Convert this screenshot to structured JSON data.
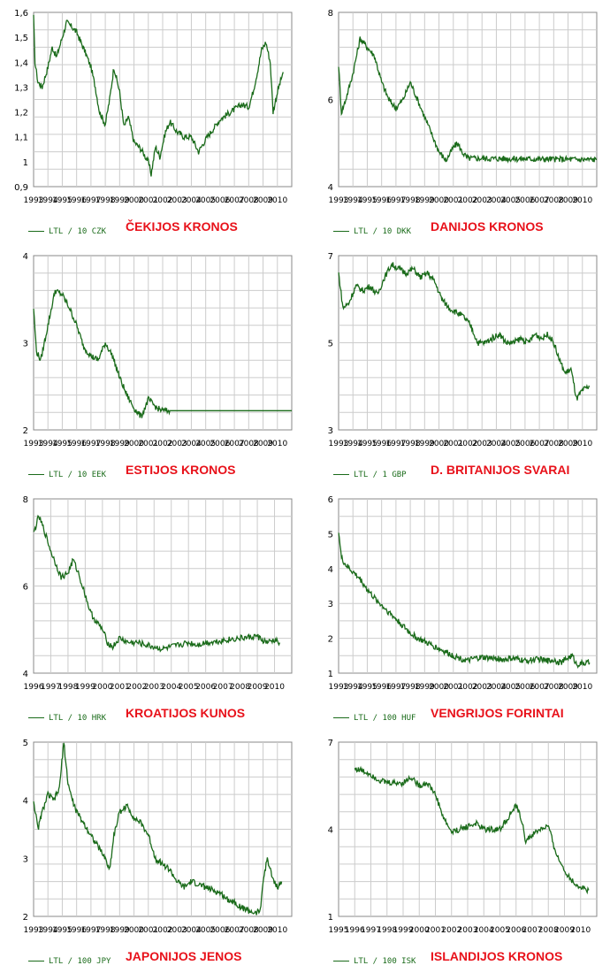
{
  "colors": {
    "line": "#1a6b1a",
    "grid": "#cccccc",
    "axis": "#888888",
    "title": "#e8111a",
    "legend": "#1a6b1a"
  },
  "chart_data": [
    {
      "type": "line",
      "title": "ČEKIJOS KRONOS",
      "legend": "LTL / 10 CZK",
      "ylim": [
        0.9,
        1.6
      ],
      "yticks": [
        "0,9",
        "1",
        "1,1",
        "1,2",
        "1,3",
        "1,4",
        "1,5",
        "1,6"
      ],
      "xlim": [
        1993,
        2011
      ],
      "xticks": [
        "1993",
        "1994",
        "1995",
        "1996",
        "1997",
        "1998",
        "1999",
        "2000",
        "2001",
        "2002",
        "2003",
        "2004",
        "2005",
        "2006",
        "2007",
        "2008",
        "2009",
        "2010"
      ],
      "x": [
        1993.0,
        1993.1,
        1993.3,
        1993.6,
        1994.0,
        1994.3,
        1994.6,
        1995.0,
        1995.3,
        1995.7,
        1996.0,
        1996.3,
        1996.6,
        1997.0,
        1997.3,
        1997.6,
        1998.0,
        1998.3,
        1998.6,
        1999.0,
        1999.3,
        1999.6,
        2000.0,
        2000.5,
        2001.0,
        2001.2,
        2001.5,
        2001.8,
        2002.2,
        2002.5,
        2003.0,
        2003.5,
        2004.0,
        2004.5,
        2005.0,
        2005.5,
        2006.0,
        2006.5,
        2007.0,
        2007.5,
        2008.0,
        2008.3,
        2008.6,
        2008.9,
        2009.2,
        2009.5,
        2009.7,
        2010.0,
        2010.4
      ],
      "y": [
        1.58,
        1.4,
        1.32,
        1.3,
        1.38,
        1.46,
        1.42,
        1.5,
        1.56,
        1.54,
        1.52,
        1.48,
        1.44,
        1.38,
        1.3,
        1.2,
        1.15,
        1.25,
        1.38,
        1.28,
        1.14,
        1.18,
        1.08,
        1.05,
        1.0,
        0.95,
        1.06,
        1.02,
        1.12,
        1.16,
        1.12,
        1.1,
        1.1,
        1.04,
        1.09,
        1.13,
        1.17,
        1.19,
        1.21,
        1.23,
        1.22,
        1.28,
        1.36,
        1.45,
        1.48,
        1.4,
        1.2,
        1.28,
        1.36
      ]
    },
    {
      "type": "line",
      "title": "DANIJOS KRONOS",
      "legend": "LTL / 10 DKK",
      "ylim": [
        4,
        8
      ],
      "yticks": [
        "4",
        "6",
        "8"
      ],
      "xlim": [
        1993,
        2011
      ],
      "xticks": [
        "1993",
        "1994",
        "1995",
        "1996",
        "1997",
        "1998",
        "1999",
        "2000",
        "2001",
        "2002",
        "2003",
        "2004",
        "2005",
        "2006",
        "2007",
        "2008",
        "2009",
        "2010"
      ],
      "x": [
        1993.0,
        1993.2,
        1993.5,
        1994.0,
        1994.5,
        1995.0,
        1995.5,
        1996.0,
        1996.5,
        1997.0,
        1997.5,
        1998.0,
        1998.5,
        1999.0,
        1999.5,
        2000.0,
        2000.5,
        2001.0,
        2001.3,
        2001.6,
        2002.0,
        2002.5,
        2011.0
      ],
      "y": [
        6.8,
        5.7,
        6.0,
        6.6,
        7.4,
        7.2,
        7.0,
        6.4,
        6.0,
        5.8,
        6.0,
        6.4,
        6.0,
        5.6,
        5.2,
        4.8,
        4.6,
        4.9,
        5.0,
        4.8,
        4.65,
        4.65,
        4.62
      ]
    },
    {
      "type": "line",
      "title": "ESTIJOS KRONOS",
      "legend": "LTL / 10 EEK",
      "ylim": [
        2,
        4
      ],
      "yticks": [
        "2",
        "3",
        "4"
      ],
      "xlim": [
        1993,
        2011
      ],
      "xticks": [
        "1993",
        "1994",
        "1995",
        "1996",
        "1997",
        "1998",
        "1999",
        "2000",
        "2001",
        "2002",
        "2003",
        "2004",
        "2005",
        "2006",
        "2007",
        "2008",
        "2009",
        "2010"
      ],
      "x": [
        1993.0,
        1993.2,
        1993.5,
        1994.0,
        1994.5,
        1995.0,
        1995.5,
        1996.0,
        1996.5,
        1997.0,
        1997.5,
        1998.0,
        1998.5,
        1999.0,
        1999.5,
        2000.0,
        2000.5,
        2001.0,
        2001.3,
        2001.6,
        2002.0,
        2002.5,
        2011.0
      ],
      "y": [
        3.4,
        2.9,
        2.8,
        3.2,
        3.6,
        3.55,
        3.4,
        3.2,
        2.95,
        2.85,
        2.8,
        3.0,
        2.85,
        2.6,
        2.4,
        2.25,
        2.15,
        2.35,
        2.3,
        2.25,
        2.22,
        2.22,
        2.22
      ]
    },
    {
      "type": "line",
      "title": "D. BRITANIJOS SVARAI",
      "legend": "LTL / 1 GBP",
      "ylim": [
        3,
        7
      ],
      "yticks": [
        "3",
        "5",
        "7"
      ],
      "xlim": [
        1993,
        2011
      ],
      "xticks": [
        "1993",
        "1994",
        "1995",
        "1996",
        "1997",
        "1998",
        "1999",
        "2000",
        "2001",
        "2002",
        "2003",
        "2004",
        "2005",
        "2006",
        "2007",
        "2008",
        "2009",
        "2010"
      ],
      "x": [
        1993.0,
        1993.3,
        1993.7,
        1994.2,
        1994.7,
        1995.2,
        1995.7,
        1996.2,
        1996.7,
        1997.2,
        1997.7,
        1998.2,
        1998.7,
        1999.2,
        1999.7,
        2000.2,
        2000.7,
        2001.2,
        2001.7,
        2002.2,
        2002.7,
        2003.2,
        2003.7,
        2004.2,
        2004.7,
        2005.2,
        2005.7,
        2006.2,
        2006.7,
        2007.2,
        2007.6,
        2008.0,
        2008.4,
        2008.8,
        2009.2,
        2009.6,
        2010.0,
        2010.5
      ],
      "y": [
        6.6,
        5.8,
        5.9,
        6.3,
        6.2,
        6.3,
        6.1,
        6.5,
        6.8,
        6.7,
        6.6,
        6.7,
        6.5,
        6.6,
        6.4,
        6.0,
        5.8,
        5.7,
        5.6,
        5.4,
        5.0,
        5.0,
        5.1,
        5.2,
        5.0,
        5.0,
        5.1,
        5.0,
        5.2,
        5.1,
        5.2,
        5.0,
        4.6,
        4.3,
        4.4,
        3.7,
        3.9,
        4.0
      ]
    },
    {
      "type": "line",
      "title": "KROATIJOS KUNOS",
      "legend": "LTL / 10 HRK",
      "ylim": [
        4,
        8
      ],
      "yticks": [
        "4",
        "6",
        "8"
      ],
      "xlim": [
        1996,
        2011
      ],
      "xticks": [
        "1996",
        "1997",
        "1998",
        "1999",
        "2000",
        "2001",
        "2002",
        "2003",
        "2004",
        "2005",
        "2006",
        "2007",
        "2008",
        "2009",
        "2010"
      ],
      "x": [
        1996.0,
        1996.3,
        1996.6,
        1997.0,
        1997.3,
        1997.6,
        1998.0,
        1998.3,
        1998.6,
        1999.0,
        1999.3,
        1999.6,
        2000.0,
        2000.3,
        2000.6,
        2001.0,
        2001.5,
        2002.0,
        2002.5,
        2003.0,
        2003.5,
        2004.0,
        2004.5,
        2005.0,
        2005.5,
        2006.0,
        2006.5,
        2007.0,
        2007.5,
        2008.0,
        2008.5,
        2009.0,
        2009.3,
        2009.6,
        2010.0,
        2010.3
      ],
      "y": [
        7.2,
        7.6,
        7.3,
        6.8,
        6.5,
        6.2,
        6.3,
        6.6,
        6.3,
        5.8,
        5.4,
        5.2,
        5.0,
        4.7,
        4.6,
        4.8,
        4.7,
        4.7,
        4.65,
        4.6,
        4.55,
        4.6,
        4.65,
        4.7,
        4.65,
        4.7,
        4.72,
        4.75,
        4.78,
        4.8,
        4.82,
        4.85,
        4.75,
        4.7,
        4.75,
        4.7
      ]
    },
    {
      "type": "line",
      "title": "VENGRIJOS FORINTAI",
      "legend": "LTL / 100 HUF",
      "ylim": [
        1,
        6
      ],
      "yticks": [
        "1",
        "2",
        "3",
        "4",
        "5",
        "6"
      ],
      "xlim": [
        1993,
        2011
      ],
      "xticks": [
        "1993",
        "1994",
        "1995",
        "1996",
        "1997",
        "1998",
        "1999",
        "2000",
        "2001",
        "2002",
        "2003",
        "2004",
        "2005",
        "2006",
        "2007",
        "2008",
        "2009",
        "2010"
      ],
      "x": [
        1993.0,
        1993.2,
        1993.5,
        1994.0,
        1994.5,
        1995.0,
        1995.5,
        1996.0,
        1996.5,
        1997.0,
        1997.5,
        1998.0,
        1998.5,
        1999.0,
        1999.5,
        2000.0,
        2000.5,
        2001.0,
        2001.5,
        2002.0,
        2002.5,
        2003.0,
        2003.5,
        2004.0,
        2004.5,
        2005.0,
        2005.5,
        2006.0,
        2006.5,
        2007.0,
        2007.5,
        2008.0,
        2008.5,
        2009.0,
        2009.3,
        2009.6,
        2010.0,
        2010.5
      ],
      "y": [
        5.1,
        4.3,
        4.1,
        3.9,
        3.7,
        3.4,
        3.15,
        2.95,
        2.75,
        2.55,
        2.35,
        2.15,
        2.0,
        1.9,
        1.8,
        1.7,
        1.6,
        1.5,
        1.42,
        1.35,
        1.42,
        1.45,
        1.43,
        1.42,
        1.38,
        1.42,
        1.4,
        1.35,
        1.38,
        1.4,
        1.35,
        1.38,
        1.3,
        1.45,
        1.5,
        1.25,
        1.28,
        1.3
      ]
    },
    {
      "type": "line",
      "title": "JAPONIJOS JENOS",
      "legend": "LTL / 100 JPY",
      "ylim": [
        2,
        5
      ],
      "yticks": [
        "2",
        "3",
        "4",
        "5"
      ],
      "xlim": [
        1993,
        2011
      ],
      "xticks": [
        "1993",
        "1994",
        "1995",
        "1996",
        "1997",
        "1998",
        "1999",
        "2000",
        "2001",
        "2002",
        "2003",
        "2004",
        "2005",
        "2006",
        "2007",
        "2008",
        "2009",
        "2010"
      ],
      "x": [
        1993.0,
        1993.3,
        1993.6,
        1994.0,
        1994.4,
        1994.8,
        1995.1,
        1995.4,
        1995.7,
        1996.0,
        1996.5,
        1997.0,
        1997.5,
        1998.0,
        1998.3,
        1998.6,
        1999.0,
        1999.5,
        2000.0,
        2000.5,
        2001.0,
        2001.5,
        2002.0,
        2002.5,
        2003.0,
        2003.5,
        2004.0,
        2004.5,
        2005.0,
        2005.5,
        2006.0,
        2006.5,
        2007.0,
        2007.5,
        2008.0,
        2008.5,
        2008.8,
        2009.0,
        2009.3,
        2009.6,
        2010.0,
        2010.3
      ],
      "y": [
        4.0,
        3.5,
        3.8,
        4.1,
        4.0,
        4.2,
        5.0,
        4.3,
        4.0,
        3.8,
        3.6,
        3.4,
        3.2,
        3.0,
        2.8,
        3.4,
        3.8,
        3.9,
        3.7,
        3.6,
        3.4,
        3.0,
        2.9,
        2.8,
        2.6,
        2.5,
        2.6,
        2.55,
        2.5,
        2.45,
        2.4,
        2.3,
        2.25,
        2.15,
        2.1,
        2.05,
        2.1,
        2.6,
        3.0,
        2.7,
        2.5,
        2.6
      ]
    },
    {
      "type": "line",
      "title": "ISLANDIJOS KRONOS",
      "legend": "LTL / 100 ISK",
      "ylim": [
        1,
        7
      ],
      "yticks": [
        "1",
        "4",
        "7"
      ],
      "xlim": [
        1995,
        2011
      ],
      "xticks": [
        "1995",
        "1996",
        "1997",
        "1998",
        "1999",
        "2000",
        "2001",
        "2002",
        "2003",
        "2004",
        "2005",
        "2006",
        "2007",
        "2008",
        "2009",
        "2010"
      ],
      "x": [
        1996.0,
        1996.5,
        1997.0,
        1997.5,
        1998.0,
        1998.5,
        1999.0,
        1999.5,
        2000.0,
        2000.5,
        2001.0,
        2001.5,
        2002.0,
        2002.5,
        2003.0,
        2003.5,
        2004.0,
        2004.5,
        2005.0,
        2005.5,
        2006.0,
        2006.3,
        2006.6,
        2007.0,
        2007.5,
        2008.0,
        2008.3,
        2008.6,
        2009.0,
        2009.5,
        2010.0,
        2010.5
      ],
      "y": [
        6.1,
        6.0,
        5.9,
        5.7,
        5.6,
        5.6,
        5.6,
        5.8,
        5.5,
        5.6,
        5.2,
        4.4,
        3.9,
        4.0,
        4.1,
        4.2,
        4.0,
        4.0,
        4.0,
        4.4,
        4.8,
        4.4,
        3.6,
        3.8,
        4.0,
        4.1,
        3.5,
        3.0,
        2.6,
        2.2,
        2.0,
        1.9
      ]
    }
  ]
}
